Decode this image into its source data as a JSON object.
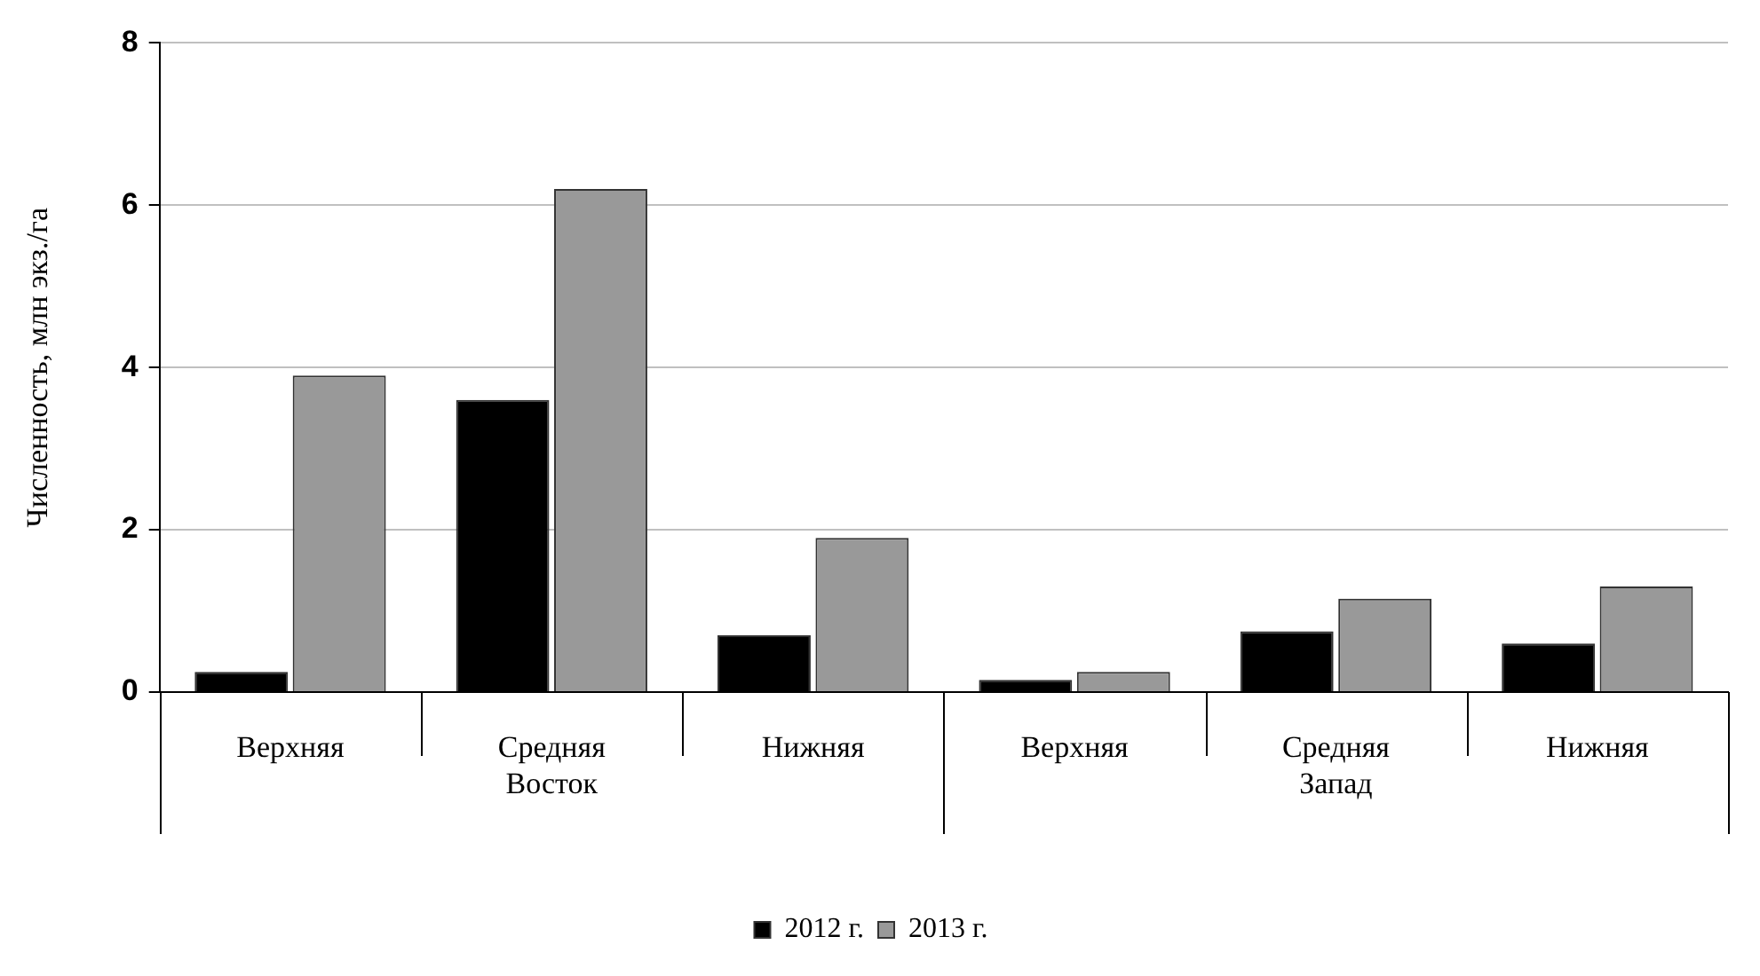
{
  "chart_data": {
    "type": "bar",
    "ylabel": "Численность, млн экз./га",
    "categories": [
      "Верхняя",
      "Средняя",
      "Нижняя",
      "Верхняя",
      "Средняя",
      "Нижняя"
    ],
    "series": [
      {
        "name": "2012 г.",
        "color": "#000000",
        "values": [
          0.25,
          3.6,
          0.7,
          0.15,
          0.75,
          0.6
        ]
      },
      {
        "name": "2013 г.",
        "color": "#999999",
        "values": [
          3.9,
          6.2,
          1.9,
          0.25,
          1.15,
          1.3
        ]
      }
    ],
    "annotations": [
      "Восток",
      "Запад"
    ],
    "ylim": [
      0,
      8
    ],
    "yticks": [
      0,
      2,
      4,
      6,
      8
    ],
    "grid": "y",
    "legend": "bottom"
  }
}
